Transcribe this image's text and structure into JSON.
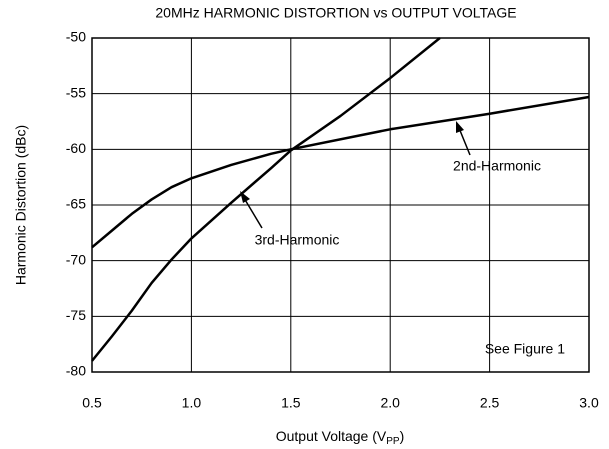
{
  "chart_data": {
    "type": "line",
    "title": "20MHz HARMONIC DISTORTION vs OUTPUT VOLTAGE",
    "xlabel": "Output Voltage (V",
    "xlabel_sub": "PP",
    "xlabel_end": ")",
    "ylabel": "Harmonic Distortion (dBc)",
    "xlim": [
      0.5,
      3.0
    ],
    "ylim": [
      -80,
      -50
    ],
    "xticks": [
      0.5,
      {
        "value": 1,
        "label": "1.0"
      },
      1.5,
      {
        "value": 2,
        "label": "2.0"
      },
      2.5,
      {
        "value": 3,
        "label": "3.0"
      }
    ],
    "yticks": [
      -50,
      -55,
      -60,
      -65,
      -70,
      -75,
      -80
    ],
    "grid": true,
    "series": [
      {
        "name": "2nd-Harmonic",
        "color": "#000000",
        "x": [
          0.5,
          0.6,
          0.7,
          0.8,
          0.9,
          1.0,
          1.2,
          1.4,
          1.5,
          2.0,
          2.5,
          3.0
        ],
        "values": [
          -68.8,
          -67.3,
          -65.8,
          -64.5,
          -63.4,
          -62.6,
          -61.4,
          -60.4,
          -60.0,
          -58.2,
          -56.8,
          -55.3
        ]
      },
      {
        "name": "3rd-Harmonic",
        "color": "#000000",
        "x": [
          0.5,
          0.6,
          0.7,
          0.8,
          0.9,
          1.0,
          1.2,
          1.4,
          1.5,
          1.75,
          2.0,
          2.25
        ],
        "values": [
          -79.0,
          -76.8,
          -74.5,
          -72.0,
          -69.9,
          -68.0,
          -64.8,
          -61.7,
          -60.1,
          -57.0,
          -53.6,
          -50.0
        ]
      }
    ],
    "annotations": [
      "See Figure 1"
    ]
  }
}
